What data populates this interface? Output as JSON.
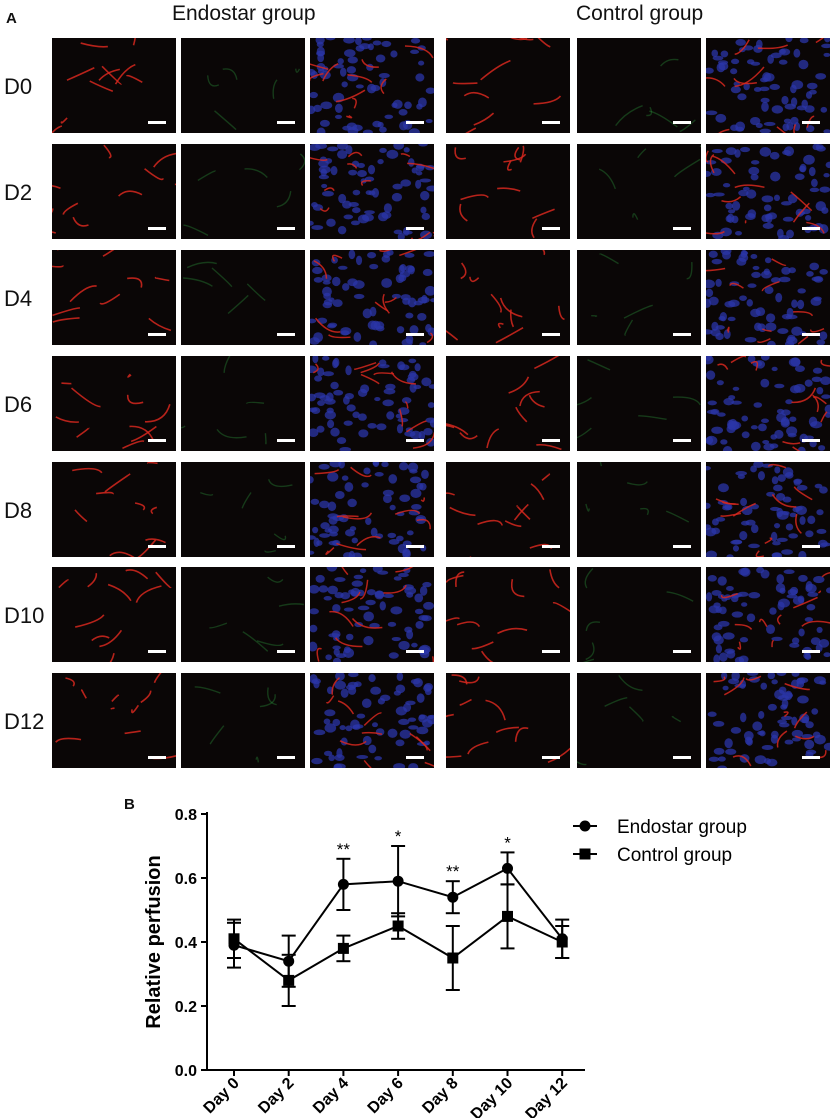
{
  "figure": {
    "panel_a_label": "A",
    "panel_b_label": "B",
    "groups": [
      {
        "title": "Endostar group"
      },
      {
        "title": "Control group"
      }
    ],
    "rows": [
      {
        "label": "D0"
      },
      {
        "label": "D2"
      },
      {
        "label": "D4"
      },
      {
        "label": "D6"
      },
      {
        "label": "D8"
      },
      {
        "label": "D10"
      },
      {
        "label": "D12"
      }
    ],
    "channels": [
      "red",
      "green",
      "merge"
    ],
    "colors": {
      "red_vessels": "#d6281e",
      "green_signal": "#2f9e3e",
      "nuclei_blue": "#2b36a8",
      "tile_background": "#0a0606",
      "scale_bar": "#ffffff"
    }
  },
  "chart_data": {
    "type": "line",
    "categories": [
      "Day 0",
      "Day 2",
      "Day 4",
      "Day 6",
      "Day 8",
      "Day 10",
      "Day 12"
    ],
    "ylabel": "Relative perfusion",
    "xlabel": "",
    "ylim": [
      0.0,
      0.8
    ],
    "yticks": [
      "0.0",
      "0.2",
      "0.4",
      "0.6",
      "0.8"
    ],
    "legend_position": "top-right",
    "series": [
      {
        "name": "Endostar group",
        "marker": "circle",
        "values": [
          0.39,
          0.34,
          0.58,
          0.59,
          0.54,
          0.63,
          0.41
        ],
        "errors": [
          0.07,
          0.08,
          0.08,
          0.11,
          0.05,
          0.05,
          0.06
        ]
      },
      {
        "name": "Control group",
        "marker": "square",
        "values": [
          0.41,
          0.28,
          0.38,
          0.45,
          0.35,
          0.48,
          0.4
        ],
        "errors": [
          0.06,
          0.08,
          0.04,
          0.04,
          0.1,
          0.1,
          0.05
        ]
      }
    ],
    "annotations": [
      {
        "category": "Day 4",
        "text": "**"
      },
      {
        "category": "Day 6",
        "text": "*"
      },
      {
        "category": "Day 8",
        "text": "**"
      },
      {
        "category": "Day 10",
        "text": "*"
      }
    ]
  }
}
